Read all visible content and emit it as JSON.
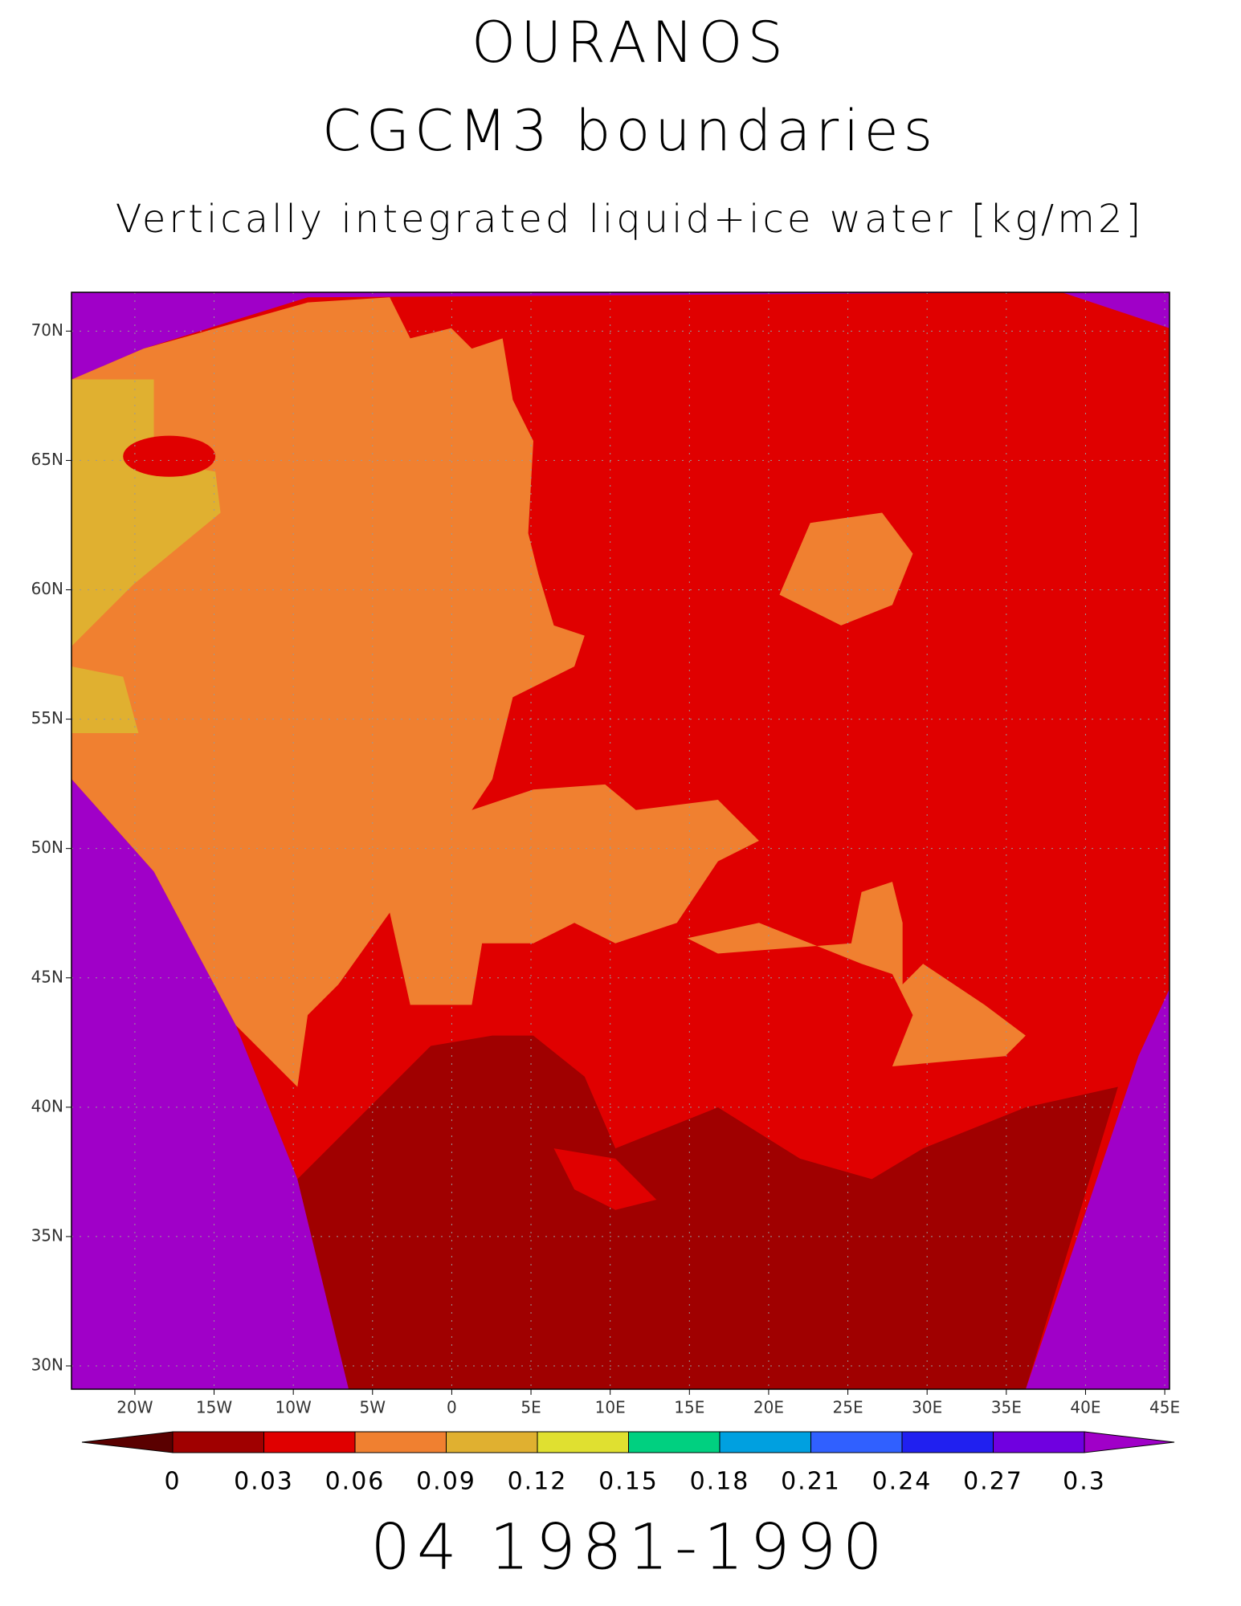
{
  "header": {
    "title": "OURANOS",
    "subtitle": "CGCM3 boundaries",
    "variable": "Vertically integrated liquid+ice water [kg/m2]"
  },
  "chart_data": {
    "type": "map",
    "xlim": [
      -24,
      45.3
    ],
    "ylim": [
      29.1,
      71.5
    ],
    "xticks": [
      {
        "value": -20,
        "label": "20W"
      },
      {
        "value": -15,
        "label": "15W"
      },
      {
        "value": -10,
        "label": "10W"
      },
      {
        "value": -5,
        "label": "5W"
      },
      0,
      {
        "value": 5,
        "label": "5E"
      },
      {
        "value": 10,
        "label": "10E"
      },
      {
        "value": 15,
        "label": "15E"
      },
      {
        "value": 20,
        "label": "20E"
      },
      {
        "value": 25,
        "label": "25E"
      },
      {
        "value": 30,
        "label": "30E"
      },
      {
        "value": 35,
        "label": "35E"
      },
      {
        "value": 40,
        "label": "40E"
      },
      {
        "value": 45,
        "label": "45E"
      }
    ],
    "yticks": [
      {
        "value": 30,
        "label": "30N"
      },
      {
        "value": 35,
        "label": "35N"
      },
      {
        "value": 40,
        "label": "40N"
      },
      {
        "value": 45,
        "label": "45N"
      },
      {
        "value": 50,
        "label": "50N"
      },
      {
        "value": 55,
        "label": "55N"
      },
      {
        "value": 60,
        "label": "60N"
      },
      {
        "value": 65,
        "label": "65N"
      },
      {
        "value": 70,
        "label": "70N"
      }
    ],
    "grid": true,
    "colorbar": {
      "levels": [
        0,
        0.03,
        0.06,
        0.09,
        0.12,
        0.15,
        0.18,
        0.21,
        0.24,
        0.27,
        0.3
      ],
      "colors": [
        "#5a0000",
        "#a00000",
        "#e00000",
        "#f08030",
        "#e0b030",
        "#e0e030",
        "#00d080",
        "#00a0e0",
        "#3060ff",
        "#2020f0",
        "#7000e0",
        "#a000c8"
      ]
    }
  },
  "footer": {
    "period": "04 1981-1990"
  }
}
